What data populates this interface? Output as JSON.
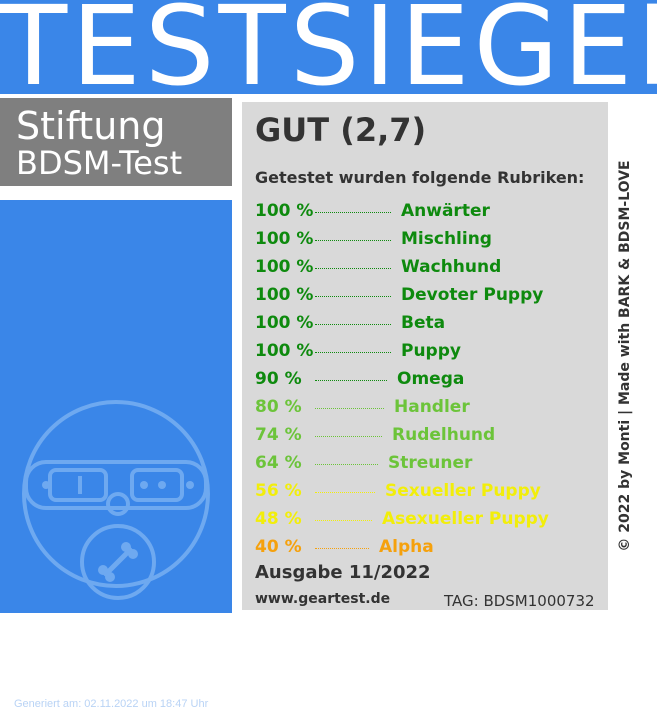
{
  "banner": {
    "title": "TESTSIEGER"
  },
  "brand": {
    "line1": "Stiftung",
    "line2": "BDSM-Test"
  },
  "generated": "Generiert am: 02.11.2022 um 18:47 Uhr",
  "result": {
    "grade": "GUT (2,7)",
    "subtitle": "Getestet wurden folgende Rubriken:"
  },
  "rubrics": [
    {
      "percent": "100 %",
      "name": "Anwärter",
      "value": 100,
      "color": "#0e8a0e"
    },
    {
      "percent": "100 %",
      "name": "Mischling",
      "value": 100,
      "color": "#0e8a0e"
    },
    {
      "percent": "100 %",
      "name": "Wachhund",
      "value": 100,
      "color": "#0e8a0e"
    },
    {
      "percent": "100 %",
      "name": "Devoter Puppy",
      "value": 100,
      "color": "#0e8a0e"
    },
    {
      "percent": "100 %",
      "name": "Beta",
      "value": 100,
      "color": "#0e8a0e"
    },
    {
      "percent": "100 %",
      "name": "Puppy",
      "value": 100,
      "color": "#0e8a0e"
    },
    {
      "percent": "90 %",
      "name": "Omega",
      "value": 90,
      "color": "#0e8a0e"
    },
    {
      "percent": "80 %",
      "name": "Handler",
      "value": 80,
      "color": "#6cc43a"
    },
    {
      "percent": "74 %",
      "name": "Rudelhund",
      "value": 74,
      "color": "#6cc43a"
    },
    {
      "percent": "64 %",
      "name": "Streuner",
      "value": 64,
      "color": "#6cc43a"
    },
    {
      "percent": "56 %",
      "name": "Sexueller Puppy",
      "value": 56,
      "color": "#f2ee0a"
    },
    {
      "percent": "48 %",
      "name": "Asexueller Puppy",
      "value": 48,
      "color": "#f2ee0a"
    },
    {
      "percent": "40 %",
      "name": "Alpha",
      "value": 40,
      "color": "#f5a10d"
    }
  ],
  "edition": "Ausgabe 11/2022",
  "website": "www.geartest.de",
  "tag": "TAG: BDSM1000732",
  "copyright": "© 2022 by Monti | Made with BARK & BDSM-LOVE",
  "colors": {
    "banner_blue": "#3a86e8",
    "panel_gray": "#d9d9d9",
    "brand_gray": "#7f7f7f"
  },
  "icons": {
    "seal": "dog-collar-icon"
  }
}
